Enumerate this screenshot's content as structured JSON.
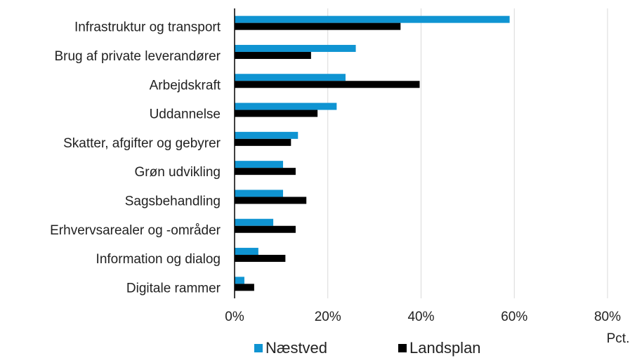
{
  "chart_data": {
    "type": "hbar",
    "categories": [
      "Infrastruktur og transport",
      "Brug af private leverandører",
      "Arbejdskraft",
      "Uddannelse",
      "Skatter, afgifter og gebyrer",
      "Grøn udvikling",
      "Sagsbehandling",
      "Erhvervsarealer og -områder",
      "Information og dialog",
      "Digitale rammer"
    ],
    "series": [
      {
        "name": "Næstved",
        "color": "#0f94d2",
        "values": [
          59,
          26,
          23.8,
          21.9,
          13.6,
          10.4,
          10.4,
          8.3,
          5.1,
          2.1
        ]
      },
      {
        "name": "Landsplan",
        "color": "#000000",
        "values": [
          35.6,
          16.4,
          39.7,
          17.8,
          12.1,
          13.1,
          15.4,
          13.1,
          10.9,
          4.2
        ]
      }
    ],
    "xlim": [
      0,
      80
    ],
    "xticks": [
      {
        "value": 0,
        "label": "0%"
      },
      {
        "value": 20,
        "label": "20%"
      },
      {
        "value": 40,
        "label": "40%"
      },
      {
        "value": 60,
        "label": "60%"
      },
      {
        "value": 80,
        "label": "80%"
      }
    ],
    "xlabel": "Pct.",
    "grid": true,
    "legend": "bottom"
  }
}
